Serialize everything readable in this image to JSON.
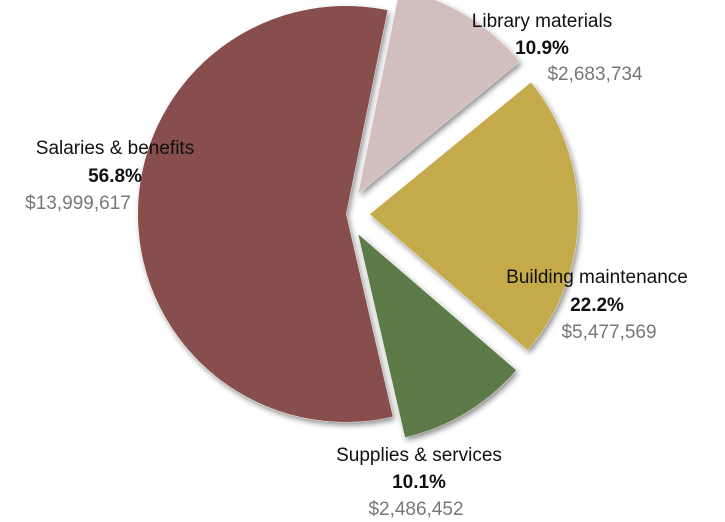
{
  "chart_data": {
    "type": "pie",
    "title": "",
    "slices": [
      {
        "label": "Library materials",
        "percent_label": "10.9%",
        "amount_label": "$2,683,734",
        "value": 2683734,
        "color": "#d6c3c1"
      },
      {
        "label": "Building maintenance",
        "percent_label": "22.2%",
        "amount_label": "$5,477,569",
        "value": 5477569,
        "color": "#c9ae4d"
      },
      {
        "label": "Supplies & services",
        "percent_label": "10.1%",
        "amount_label": "$2,486,452",
        "value": 2486452,
        "color": "#5e7d48"
      },
      {
        "label": "Salaries & benefits",
        "percent_label": "56.8%",
        "amount_label": "$13,999,617",
        "value": 13999617,
        "color": "#8b4f4f"
      }
    ]
  }
}
